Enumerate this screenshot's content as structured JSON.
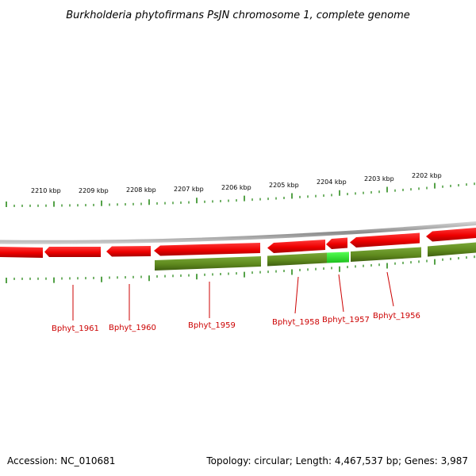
{
  "title": "Burkholderia phytofirmans PsJN chromosome 1, complete genome",
  "scale_labels": [
    "2210 kbp",
    "2209 kbp",
    "2208 kbp",
    "2207 kbp",
    "2206 kbp",
    "2205 kbp",
    "2204 kbp",
    "2203 kbp",
    "2202 kbp"
  ],
  "genes": [
    {
      "label": "Bphyt_1961"
    },
    {
      "label": "Bphyt_1960"
    },
    {
      "label": "Bphyt_1959"
    },
    {
      "label": "Bphyt_1958"
    },
    {
      "label": "Bphyt_1957"
    },
    {
      "label": "Bphyt_1956"
    }
  ],
  "footer": {
    "accession": "Accession: NC_010681",
    "summary": "Topology: circular; Length: 4,467,537 bp; Genes: 3,987"
  },
  "colors": {
    "forward_gene": "#ee0000",
    "reverse_gene": "#5f8a1e",
    "highlight_gene": "#22dd22",
    "backbone": "#999999",
    "ticks": "#2a8a1a",
    "gene_label": "#cc0000"
  }
}
